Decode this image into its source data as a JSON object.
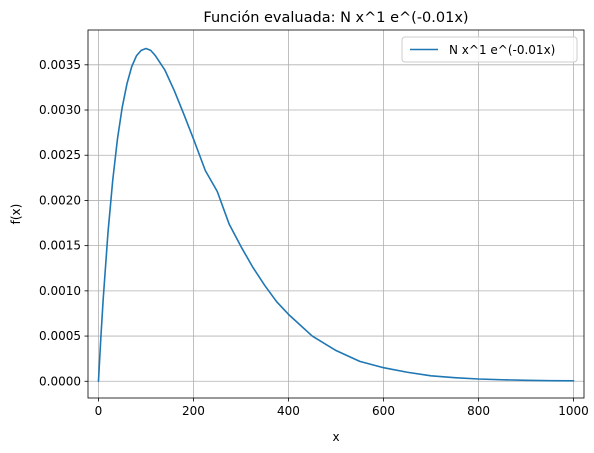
{
  "chart_data": {
    "type": "line",
    "title": "Función evaluada: N x^1 e^(-0.01x)",
    "xlabel": "x",
    "ylabel": "f(x)",
    "xlim": [
      -22,
      1022
    ],
    "ylim": [
      -0.000185,
      0.003885
    ],
    "xticks": [
      0,
      200,
      400,
      600,
      800,
      1000
    ],
    "xtick_labels": [
      "0",
      "200",
      "400",
      "600",
      "800",
      "1000"
    ],
    "yticks": [
      0,
      0.0005,
      0.001,
      0.0015,
      0.002,
      0.0025,
      0.003,
      0.0035
    ],
    "ytick_labels": [
      "0.0000",
      "0.0005",
      "0.0010",
      "0.0015",
      "0.0020",
      "0.0025",
      "0.0030",
      "0.0035"
    ],
    "grid": true,
    "legend_position": "top-right",
    "series": [
      {
        "name": "N x^1 e^(-0.01x)",
        "color": "#1f77b4",
        "x": [
          0,
          5,
          10,
          20,
          30,
          40,
          50,
          60,
          70,
          80,
          90,
          100,
          110,
          120,
          140,
          160,
          180,
          200,
          225,
          250,
          275,
          300,
          325,
          350,
          375,
          400,
          450,
          500,
          550,
          600,
          650,
          700,
          750,
          800,
          850,
          900,
          950,
          1000
        ],
        "y": [
          0,
          0.000479,
          0.00091,
          0.00164,
          0.00222,
          0.00268,
          0.00303,
          0.00329,
          0.00348,
          0.0036,
          0.00366,
          0.00368,
          0.00366,
          0.0036,
          0.00344,
          0.00321,
          0.00295,
          0.00268,
          0.00233,
          0.0021,
          0.00174,
          0.00149,
          0.00126,
          0.00106,
          0.00088,
          0.00074,
          0.0005,
          0.00034,
          0.00022,
          0.00015,
          0.0001,
          6e-05,
          4e-05,
          2.5e-05,
          1.7e-05,
          1.1e-05,
          7e-06,
          5e-06
        ]
      }
    ]
  }
}
